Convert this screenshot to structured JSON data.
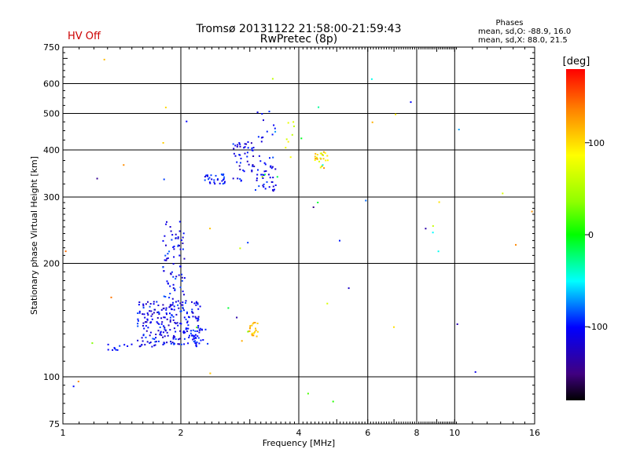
{
  "status_text": "HV Off",
  "title_line1": "Tromsø 20131122 21:58:00-21:59:43",
  "title_line2": "RwPretec (8p)",
  "phases": {
    "heading": "Phases",
    "o_line": "mean, sd,O: -88.9, 16.0",
    "x_line": "mean, sd,X:  88.0, 21.5"
  },
  "colors": {
    "status": "#cc0000",
    "grid": "#000000"
  },
  "chart_data": {
    "type": "scatter",
    "xlabel": "Frequency [MHz]",
    "ylabel": "Stationary phase Virtual Height [km]",
    "xscale": "log",
    "yscale": "log",
    "xlim": [
      1,
      16
    ],
    "ylim": [
      75,
      750
    ],
    "x_ticks": [
      1,
      2,
      4,
      6,
      8,
      10,
      16
    ],
    "y_ticks": [
      75,
      100,
      200,
      300,
      400,
      500,
      600,
      750
    ],
    "grid": true,
    "colorbar": {
      "label": "[deg]",
      "range": [
        -180,
        180
      ],
      "ticks": [
        100,
        0,
        -100
      ]
    },
    "clusters": [
      {
        "fmin": 1.55,
        "fmax": 2.25,
        "hmin": 120,
        "hmax": 160,
        "n": 230,
        "pmin": -130,
        "pmax": -85
      },
      {
        "fmin": 1.8,
        "fmax": 2.05,
        "hmin": 150,
        "hmax": 260,
        "n": 80,
        "pmin": -130,
        "pmax": -80
      },
      {
        "fmin": 2.05,
        "fmax": 2.35,
        "hmin": 122,
        "hmax": 135,
        "n": 25,
        "pmin": -110,
        "pmax": -85
      },
      {
        "fmin": 1.3,
        "fmax": 1.5,
        "hmin": 117,
        "hmax": 122,
        "n": 10,
        "pmin": -110,
        "pmax": -90
      },
      {
        "fmin": 2.3,
        "fmax": 2.6,
        "hmin": 325,
        "hmax": 345,
        "n": 30,
        "pmin": -115,
        "pmax": -85
      },
      {
        "fmin": 2.7,
        "fmax": 3.1,
        "hmin": 330,
        "hmax": 420,
        "n": 45,
        "pmin": -135,
        "pmax": -85
      },
      {
        "fmin": 3.1,
        "fmax": 3.5,
        "hmin": 310,
        "hmax": 390,
        "n": 40,
        "pmin": -125,
        "pmax": -85
      },
      {
        "fmin": 3.1,
        "fmax": 3.55,
        "hmin": 420,
        "hmax": 510,
        "n": 12,
        "pmin": -120,
        "pmax": -90
      },
      {
        "fmin": 3.7,
        "fmax": 3.9,
        "hmin": 380,
        "hmax": 480,
        "n": 8,
        "pmin": 50,
        "pmax": 110
      },
      {
        "fmin": 4.4,
        "fmax": 4.75,
        "hmin": 355,
        "hmax": 395,
        "n": 25,
        "pmin": 60,
        "pmax": 130
      },
      {
        "fmin": 2.95,
        "fmax": 3.15,
        "hmin": 128,
        "hmax": 140,
        "n": 22,
        "pmin": 95,
        "pmax": 130
      },
      {
        "fmin": 1.0,
        "fmax": 16.0,
        "hmin": 80,
        "hmax": 700,
        "n": 55,
        "pmin": -150,
        "pmax": 150
      }
    ]
  }
}
